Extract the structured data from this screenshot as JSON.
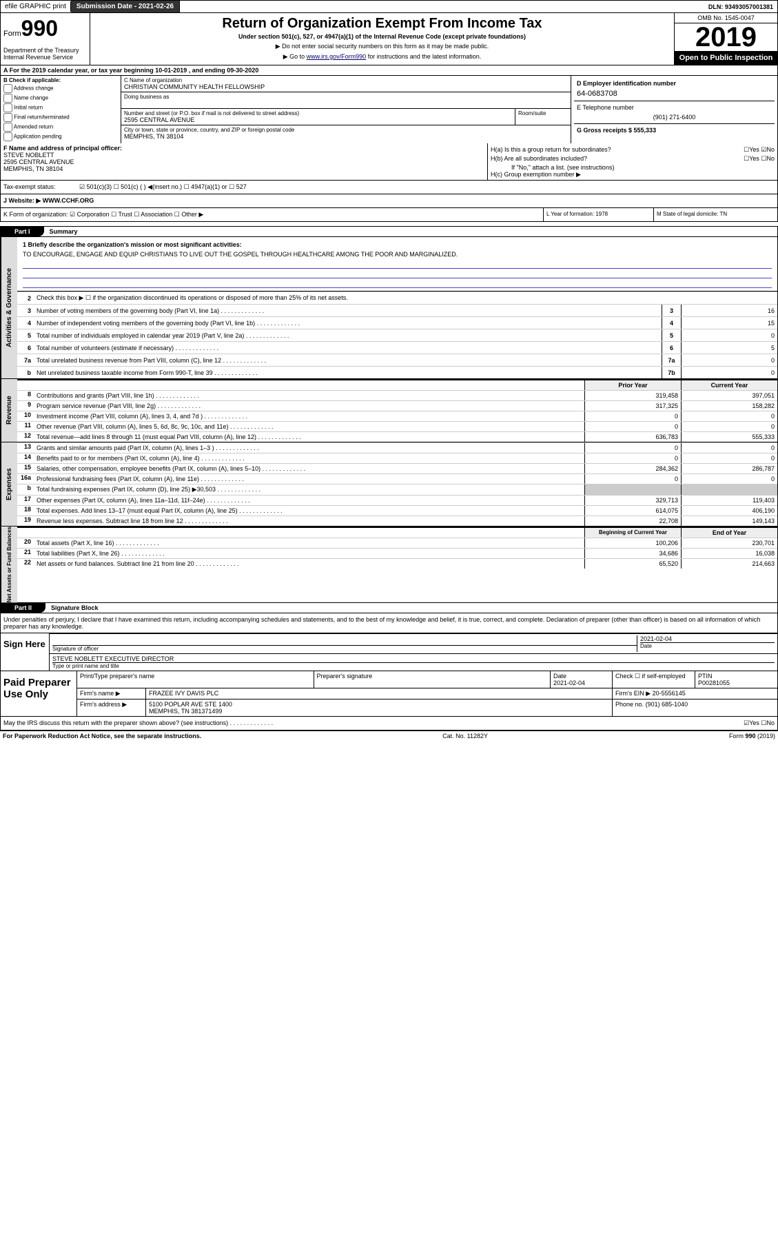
{
  "top": {
    "efile": "efile GRAPHIC print",
    "submission": "Submission Date - 2021-02-26",
    "dln": "DLN: 93493057001381"
  },
  "header": {
    "form": "Form",
    "form_num": "990",
    "dept": "Department of the Treasury\nInternal Revenue Service",
    "title": "Return of Organization Exempt From Income Tax",
    "subtitle": "Under section 501(c), 527, or 4947(a)(1) of the Internal Revenue Code (except private foundations)",
    "line1": "▶ Do not enter social security numbers on this form as it may be made public.",
    "line2_pre": "▶ Go to ",
    "line2_link": "www.irs.gov/Form990",
    "line2_post": " for instructions and the latest information.",
    "omb": "OMB No. 1545-0047",
    "year": "2019",
    "open": "Open to Public Inspection"
  },
  "period": "A For the 2019 calendar year, or tax year beginning 10-01-2019    , and ending 09-30-2020",
  "b": {
    "label": "B Check if applicable:",
    "opts": [
      "Address change",
      "Name change",
      "Initial return",
      "Final return/terminated",
      "Amended return",
      "Application pending"
    ]
  },
  "c": {
    "name_label": "C Name of organization",
    "name": "CHRISTIAN COMMUNITY HEALTH FELLOWSHIP",
    "dba_label": "Doing business as",
    "addr_label": "Number and street (or P.O. box if mail is not delivered to street address)",
    "room_label": "Room/suite",
    "addr": "2595 CENTRAL AVENUE",
    "city_label": "City or town, state or province, country, and ZIP or foreign postal code",
    "city": "MEMPHIS, TN  38104"
  },
  "d": {
    "label": "D Employer identification number",
    "val": "64-0683708"
  },
  "e": {
    "label": "E Telephone number",
    "val": "(901) 271-6400"
  },
  "g": {
    "label": "G Gross receipts $ 555,333"
  },
  "f": {
    "label": "F Name and address of principal officer:",
    "name": "STEVE NOBLETT",
    "addr1": "2595 CENTRAL AVENUE",
    "addr2": "MEMPHIS, TN  38104"
  },
  "h": {
    "a": "H(a)  Is this a group return for subordinates?",
    "a_yn": "☐Yes ☑No",
    "b": "H(b)  Are all subordinates included?",
    "b_yn": "☐Yes ☐No",
    "b_note": "If \"No,\" attach a list. (see instructions)",
    "c": "H(c)  Group exemption number ▶"
  },
  "i": {
    "label": "Tax-exempt status:",
    "opts": "☑ 501(c)(3)   ☐ 501(c) (  ) ◀(insert no.)   ☐ 4947(a)(1) or   ☐ 527"
  },
  "j": {
    "label": "J   Website: ▶",
    "val": "WWW.CCHF.ORG"
  },
  "k": "K Form of organization:  ☑ Corporation ☐ Trust ☐ Association ☐ Other ▶",
  "l": {
    "label": "L Year of formation: ",
    "val": "1978"
  },
  "m": {
    "label": "M State of legal domicile: ",
    "val": "TN"
  },
  "part1": {
    "header": "Part I",
    "title": "Summary",
    "l1_label": "1  Briefly describe the organization's mission or most significant activities:",
    "l1_text": "TO ENCOURAGE, ENGAGE AND EQUIP CHRISTIANS TO LIVE OUT THE GOSPEL THROUGH HEALTHCARE AMONG THE POOR AND MARGINALIZED.",
    "l2": "Check this box ▶ ☐  if the organization discontinued its operations or disposed of more than 25% of its net assets.",
    "lines_gov": [
      {
        "n": "3",
        "t": "Number of voting members of the governing body (Part VI, line 1a)",
        "b": "3",
        "v": "16"
      },
      {
        "n": "4",
        "t": "Number of independent voting members of the governing body (Part VI, line 1b)",
        "b": "4",
        "v": "15"
      },
      {
        "n": "5",
        "t": "Total number of individuals employed in calendar year 2019 (Part V, line 2a)",
        "b": "5",
        "v": "0"
      },
      {
        "n": "6",
        "t": "Total number of volunteers (estimate if necessary)",
        "b": "6",
        "v": "5"
      },
      {
        "n": "7a",
        "t": "Total unrelated business revenue from Part VIII, column (C), line 12",
        "b": "7a",
        "v": "0"
      },
      {
        "n": "b",
        "t": "Net unrelated business taxable income from Form 990-T, line 39",
        "b": "7b",
        "v": "0"
      }
    ],
    "prior_label": "Prior Year",
    "current_label": "Current Year",
    "lines_rev": [
      {
        "n": "8",
        "t": "Contributions and grants (Part VIII, line 1h)",
        "p": "319,458",
        "c": "397,051"
      },
      {
        "n": "9",
        "t": "Program service revenue (Part VIII, line 2g)",
        "p": "317,325",
        "c": "158,282"
      },
      {
        "n": "10",
        "t": "Investment income (Part VIII, column (A), lines 3, 4, and 7d )",
        "p": "0",
        "c": "0"
      },
      {
        "n": "11",
        "t": "Other revenue (Part VIII, column (A), lines 5, 6d, 8c, 9c, 10c, and 11e)",
        "p": "0",
        "c": "0"
      },
      {
        "n": "12",
        "t": "Total revenue—add lines 8 through 11 (must equal Part VIII, column (A), line 12)",
        "p": "636,783",
        "c": "555,333"
      }
    ],
    "lines_exp": [
      {
        "n": "13",
        "t": "Grants and similar amounts paid (Part IX, column (A), lines 1–3 )",
        "p": "0",
        "c": "0"
      },
      {
        "n": "14",
        "t": "Benefits paid to or for members (Part IX, column (A), line 4)",
        "p": "0",
        "c": "0"
      },
      {
        "n": "15",
        "t": "Salaries, other compensation, employee benefits (Part IX, column (A), lines 5–10)",
        "p": "284,362",
        "c": "286,787"
      },
      {
        "n": "16a",
        "t": "Professional fundraising fees (Part IX, column (A), line 11e)",
        "p": "0",
        "c": "0"
      },
      {
        "n": "b",
        "t": "Total fundraising expenses (Part IX, column (D), line 25) ▶30,503",
        "p": "",
        "c": "",
        "shade": true
      },
      {
        "n": "17",
        "t": "Other expenses (Part IX, column (A), lines 11a–11d, 11f–24e)",
        "p": "329,713",
        "c": "119,403"
      },
      {
        "n": "18",
        "t": "Total expenses. Add lines 13–17 (must equal Part IX, column (A), line 25)",
        "p": "614,075",
        "c": "406,190"
      },
      {
        "n": "19",
        "t": "Revenue less expenses. Subtract line 18 from line 12",
        "p": "22,708",
        "c": "149,143"
      }
    ],
    "begin_label": "Beginning of Current Year",
    "end_label": "End of Year",
    "lines_net": [
      {
        "n": "20",
        "t": "Total assets (Part X, line 16)",
        "p": "100,206",
        "c": "230,701"
      },
      {
        "n": "21",
        "t": "Total liabilities (Part X, line 26)",
        "p": "34,686",
        "c": "16,038"
      },
      {
        "n": "22",
        "t": "Net assets or fund balances. Subtract line 21 from line 20",
        "p": "65,520",
        "c": "214,663"
      }
    ],
    "side_gov": "Activities & Governance",
    "side_rev": "Revenue",
    "side_exp": "Expenses",
    "side_net": "Net Assets or Fund Balances"
  },
  "part2": {
    "header": "Part II",
    "title": "Signature Block",
    "decl": "Under penalties of perjury, I declare that I have examined this return, including accompanying schedules and statements, and to the best of my knowledge and belief, it is true, correct, and complete. Declaration of preparer (other than officer) is based on all information of which preparer has any knowledge.",
    "sign_here": "Sign Here",
    "sig_officer": "Signature of officer",
    "date_label": "Date",
    "date_val": "2021-02-04",
    "name_title": "STEVE NOBLETT  EXECUTIVE DIRECTOR",
    "type_label": "Type or print name and title",
    "paid": "Paid Preparer Use Only",
    "prep_name_label": "Print/Type preparer's name",
    "prep_sig_label": "Preparer's signature",
    "prep_date_label": "Date",
    "prep_date": "2021-02-04",
    "check_self": "Check ☐ if self-employed",
    "ptin_label": "PTIN",
    "ptin": "P00281055",
    "firm_name_label": "Firm's name    ▶",
    "firm_name": "FRAZEE IVY DAVIS PLC",
    "firm_ein_label": "Firm's EIN ▶",
    "firm_ein": "20-5556145",
    "firm_addr_label": "Firm's address ▶",
    "firm_addr1": "5100 POPLAR AVE STE 1400",
    "firm_addr2": "MEMPHIS, TN  381371499",
    "phone_label": "Phone no.",
    "phone": "(901) 685-1040",
    "irs_discuss": "May the IRS discuss this return with the preparer shown above? (see instructions)",
    "irs_yn": "☑Yes ☐No"
  },
  "footer": {
    "left": "For Paperwork Reduction Act Notice, see the separate instructions.",
    "mid": "Cat. No. 11282Y",
    "right": "Form 990 (2019)"
  }
}
